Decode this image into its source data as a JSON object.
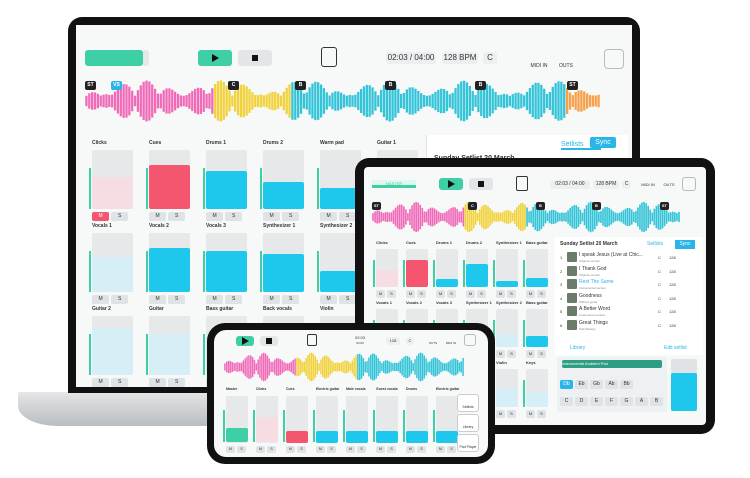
{
  "laptop": {
    "time": "02:03 / 04:00",
    "bpm": "128 BPM",
    "key": "C",
    "midi": "MIDI IN",
    "outs": "OUTS",
    "mute": "M",
    "solo": "S",
    "markers": [
      "ST",
      "VS",
      "C",
      "B",
      "B",
      "B",
      "ST"
    ],
    "tracks": [
      {
        "name": "Clicks",
        "level": 55,
        "color": "#f6dde3"
      },
      {
        "name": "Cues",
        "level": 75,
        "color": "#f5566f"
      },
      {
        "name": "Drums 1",
        "level": 65,
        "color": "#1ec8ec"
      },
      {
        "name": "Drums 2",
        "level": 45,
        "color": "#1ec8ec"
      },
      {
        "name": "Warm pad",
        "level": 35,
        "color": "#1ec8ec"
      },
      {
        "name": "Guitar 1",
        "level": 50,
        "color": "#1ec8ec"
      },
      {
        "name": "Vocals 1",
        "level": 60,
        "color": "#d6eef6"
      },
      {
        "name": "Vocals 2",
        "level": 75,
        "color": "#1ec8ec"
      },
      {
        "name": "Vocals 3",
        "level": 70,
        "color": "#1ec8ec"
      },
      {
        "name": "Synthesizer 1",
        "level": 65,
        "color": "#1ec8ec"
      },
      {
        "name": "Synthesizer 2",
        "level": 35,
        "color": "#1ec8ec"
      },
      {
        "name": "Guitar 3",
        "level": 50,
        "color": "#1ec8ec"
      },
      {
        "name": "Guitar 2",
        "level": 80,
        "color": "#d6eef6"
      },
      {
        "name": "Guitar",
        "level": 70,
        "color": "#d6eef6"
      },
      {
        "name": "Bass guitar",
        "level": 75,
        "color": "#d6eef6"
      },
      {
        "name": "Back vocals",
        "level": 70,
        "color": "#d6eef6"
      },
      {
        "name": "Violin",
        "level": 60,
        "color": "#d6eef6"
      },
      {
        "name": "Keys",
        "level": 50,
        "color": "#d6eef6"
      }
    ],
    "setlist": {
      "title": "Sunday Setlist 20 March",
      "tab": "Setlists",
      "sync": "Sync",
      "songs": [
        "I speak Jesus (Live at Chic..."
      ]
    }
  },
  "tablet": {
    "master": "MASTER",
    "time": "02:03 / 04:00",
    "bpm": "128 BPM",
    "key": "C",
    "midi": "MIDI IN",
    "outs": "OUTS",
    "mute": "M",
    "solo": "S",
    "markers": [
      "ST",
      "C",
      "B",
      "B",
      "ST"
    ],
    "tracks": [
      {
        "name": "Clicks",
        "level": 45,
        "color": "#f6dde3"
      },
      {
        "name": "Cues",
        "level": 70,
        "color": "#f5566f"
      },
      {
        "name": "Drums 1",
        "level": 20,
        "color": "#1ec8ec"
      },
      {
        "name": "Drums 2",
        "level": 60,
        "color": "#1ec8ec"
      },
      {
        "name": "Synthesizer 1",
        "level": 15,
        "color": "#1ec8ec"
      },
      {
        "name": "Bass guitar",
        "level": 25,
        "color": "#1ec8ec"
      },
      {
        "name": "Vocals 1",
        "level": 50,
        "color": "#d6eef6"
      },
      {
        "name": "Vocals 2",
        "level": 40,
        "color": "#d6eef6"
      },
      {
        "name": "Vocals 3",
        "level": 55,
        "color": "#d6eef6"
      },
      {
        "name": "Synthesizer 1",
        "level": 45,
        "color": "#d6eef6"
      },
      {
        "name": "Synthesizer 2",
        "level": 35,
        "color": "#d6eef6"
      },
      {
        "name": "Bass guitar",
        "level": 30,
        "color": "#1ec8ec"
      },
      {
        "name": "Guitar 2",
        "level": 60,
        "color": "#d6eef6"
      },
      {
        "name": "Guitar",
        "level": 55,
        "color": "#d6eef6"
      },
      {
        "name": "Bass guitar",
        "level": 60,
        "color": "#d6eef6"
      },
      {
        "name": "Back vocals",
        "level": 55,
        "color": "#d6eef6"
      },
      {
        "name": "Violin",
        "level": 50,
        "color": "#d6eef6"
      },
      {
        "name": "Keys",
        "level": 40,
        "color": "#d6eef6"
      }
    ],
    "setlist": {
      "title": "Sunday Setlist 20 March",
      "tab": "Setlists",
      "sync": "Sync",
      "key": "C",
      "bpm": "128",
      "songs": [
        {
          "no": "1",
          "name": "I speak Jesus (Live at Chic...",
          "sub": "Original version"
        },
        {
          "no": "2",
          "name": "I Thank God",
          "sub": "Original version"
        },
        {
          "no": "3",
          "name": "Rest The Same",
          "sub": "Instrumental version"
        },
        {
          "no": "4",
          "name": "Goodness",
          "sub": "Without guitar"
        },
        {
          "no": "5",
          "name": "A Better Word",
          "sub": "Customized version"
        },
        {
          "no": "6",
          "name": "Great Things",
          "sub": "Pad Mastery"
        }
      ],
      "library": "Library",
      "edit": "Edit setlist"
    },
    "pad": {
      "title": "Instrumental Ambient Pad",
      "sharps": [
        "Db",
        "Eb",
        "Gb",
        "Ab",
        "Bb"
      ],
      "naturals": [
        "C",
        "D",
        "E",
        "F",
        "G",
        "A",
        "B"
      ]
    }
  },
  "phone": {
    "time": "02:03",
    "total": "04:00",
    "bpm": "128",
    "key": "C",
    "outs": "OUTS",
    "midi": "MIDI IN",
    "mute": "M",
    "solo": "S",
    "tracks": [
      {
        "name": "Master",
        "level": 30,
        "color": "#3ecfa6"
      },
      {
        "name": "Clicks",
        "level": 55,
        "color": "#f6dde3"
      },
      {
        "name": "Cues",
        "level": 25,
        "color": "#f5566f"
      },
      {
        "name": "Electric guitar",
        "level": 25,
        "color": "#1ec8ec"
      },
      {
        "name": "Male vocals",
        "level": 25,
        "color": "#1ec8ec"
      },
      {
        "name": "Guest vocals",
        "level": 25,
        "color": "#1ec8ec"
      },
      {
        "name": "Drums",
        "level": 25,
        "color": "#1ec8ec"
      },
      {
        "name": "Electric guitar",
        "level": 25,
        "color": "#1ec8ec"
      }
    ],
    "side": [
      "Setlists",
      "Library",
      "Pad Player"
    ]
  }
}
